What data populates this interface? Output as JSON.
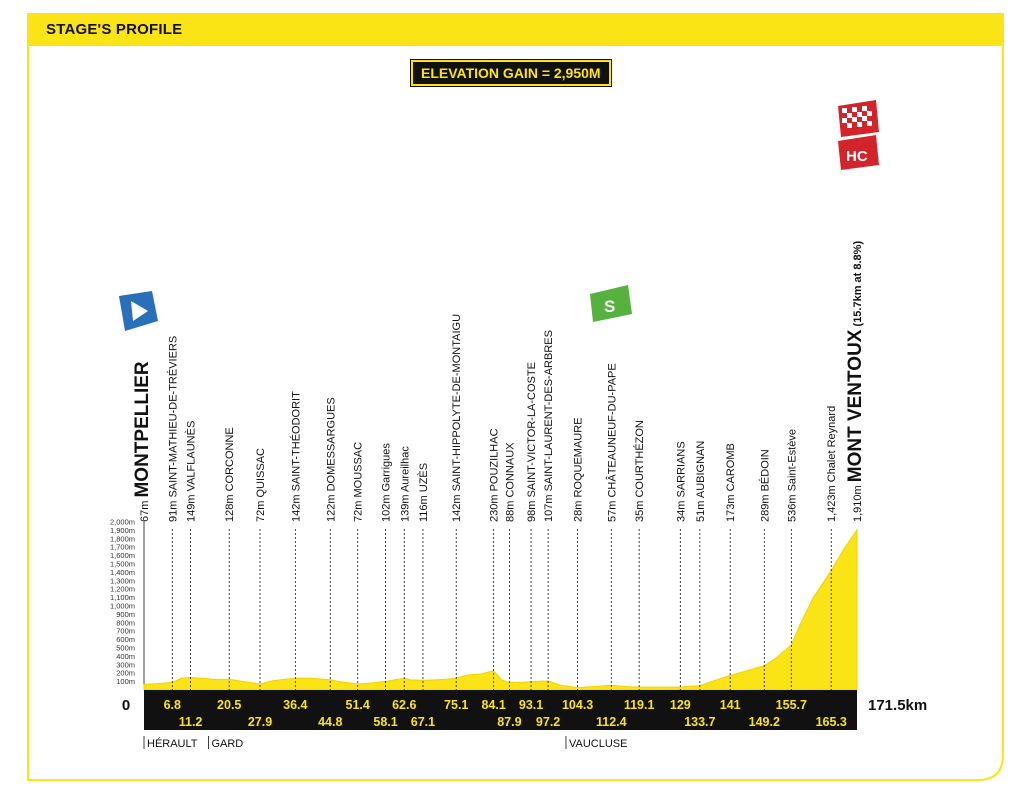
{
  "header": {
    "title": "STAGE'S PROFILE"
  },
  "elevation_gain": "ELEVATION GAIN = 2,950M",
  "badges": {
    "start": "▶",
    "sprint": "S",
    "category": "HC"
  },
  "colors": {
    "yellow": "#fbe416",
    "black": "#111111",
    "start_blue": "#2a6fba",
    "sprint_green": "#56b13f",
    "hc_red": "#d3232b"
  },
  "chart_data": {
    "type": "area",
    "title": "STAGE'S PROFILE",
    "xlim": [
      0,
      171.5
    ],
    "ylim": [
      0,
      2000
    ],
    "y_ticks": [
      "100m",
      "200m",
      "300m",
      "400m",
      "500m",
      "600m",
      "700m",
      "800m",
      "900m",
      "1,000m",
      "1,100m",
      "1,200m",
      "1,300m",
      "1,400m",
      "1,500m",
      "1,600m",
      "1,700m",
      "1,800m",
      "1,900m",
      "2,000m"
    ],
    "start_label": "0",
    "end_label": "171.5km",
    "profile": [
      [
        0,
        67
      ],
      [
        3,
        75
      ],
      [
        6.8,
        91
      ],
      [
        9,
        140
      ],
      [
        11.2,
        149
      ],
      [
        14,
        140
      ],
      [
        17,
        125
      ],
      [
        20.5,
        128
      ],
      [
        24,
        100
      ],
      [
        27.9,
        72
      ],
      [
        31,
        110
      ],
      [
        36.4,
        142
      ],
      [
        40,
        140
      ],
      [
        44.8,
        122
      ],
      [
        47,
        100
      ],
      [
        51.4,
        72
      ],
      [
        55,
        85
      ],
      [
        58.1,
        102
      ],
      [
        62.6,
        139
      ],
      [
        64,
        120
      ],
      [
        67.1,
        116
      ],
      [
        70,
        120
      ],
      [
        73,
        130
      ],
      [
        75.1,
        142
      ],
      [
        78,
        180
      ],
      [
        81,
        190
      ],
      [
        84.1,
        230
      ],
      [
        86,
        120
      ],
      [
        87.9,
        88
      ],
      [
        90,
        90
      ],
      [
        93.1,
        98
      ],
      [
        95,
        105
      ],
      [
        97.2,
        107
      ],
      [
        100,
        60
      ],
      [
        104.3,
        28
      ],
      [
        108,
        40
      ],
      [
        112.4,
        57
      ],
      [
        116,
        40
      ],
      [
        119.1,
        35
      ],
      [
        124,
        34
      ],
      [
        129,
        34
      ],
      [
        131,
        45
      ],
      [
        133.7,
        51
      ],
      [
        137,
        110
      ],
      [
        141,
        173
      ],
      [
        145,
        230
      ],
      [
        149.2,
        289
      ],
      [
        152,
        380
      ],
      [
        155.7,
        536
      ],
      [
        158,
        800
      ],
      [
        161,
        1100
      ],
      [
        165.3,
        1423
      ],
      [
        168,
        1650
      ],
      [
        171.5,
        1910
      ]
    ],
    "waypoints": [
      {
        "km": 0,
        "alt": "67m",
        "name": "MONTPELLIER",
        "style": "big"
      },
      {
        "km": 6.8,
        "alt": "91m",
        "name": "SAINT-MATHIEU-DE-TRÉVIERS"
      },
      {
        "km": 11.2,
        "alt": "149m",
        "name": "VALFLAUNÈS"
      },
      {
        "km": 20.5,
        "alt": "128m",
        "name": "CORCONNE"
      },
      {
        "km": 27.9,
        "alt": "72m",
        "name": "QUISSAC"
      },
      {
        "km": 36.4,
        "alt": "142m",
        "name": "SAINT-THÉODORIT"
      },
      {
        "km": 44.8,
        "alt": "122m",
        "name": "DOMESSARGUES"
      },
      {
        "km": 51.4,
        "alt": "72m",
        "name": "MOUSSAC"
      },
      {
        "km": 58.1,
        "alt": "102m",
        "name": "Garrigues"
      },
      {
        "km": 62.6,
        "alt": "139m",
        "name": "Aureilhac"
      },
      {
        "km": 67.1,
        "alt": "116m",
        "name": "UZÈS"
      },
      {
        "km": 75.1,
        "alt": "142m",
        "name": "SAINT-HIPPOLYTE-DE-MONTAIGU"
      },
      {
        "km": 84.1,
        "alt": "230m",
        "name": "POUZILHAC"
      },
      {
        "km": 87.9,
        "alt": "88m",
        "name": "CONNAUX"
      },
      {
        "km": 93.1,
        "alt": "98m",
        "name": "SAINT-VICTOR-LA-COSTE"
      },
      {
        "km": 97.2,
        "alt": "107m",
        "name": "SAINT-LAURENT-DES-ARBRES"
      },
      {
        "km": 104.3,
        "alt": "28m",
        "name": "ROQUEMAURE"
      },
      {
        "km": 112.4,
        "alt": "57m",
        "name": "CHÂTEAUNEUF-DU-PAPE"
      },
      {
        "km": 119.1,
        "alt": "35m",
        "name": "COURTHÉZON"
      },
      {
        "km": 129,
        "alt": "34m",
        "name": "SARRIANS"
      },
      {
        "km": 133.7,
        "alt": "51m",
        "name": "AUBIGNAN"
      },
      {
        "km": 141,
        "alt": "173m",
        "name": "CAROMB"
      },
      {
        "km": 149.2,
        "alt": "289m",
        "name": "BÉDOIN"
      },
      {
        "km": 155.7,
        "alt": "536m",
        "name": "Saint-Estève"
      },
      {
        "km": 165.3,
        "alt": "1,423m",
        "name": "Chalet Reynard"
      },
      {
        "km": 171.5,
        "alt": "1,910m",
        "name": "MONT VENTOUX",
        "style": "big",
        "suffix": "(15.7km at 8.8%)"
      }
    ],
    "km_top": [
      {
        "km": 6.8,
        "label": "6.8"
      },
      {
        "km": 20.5,
        "label": "20.5"
      },
      {
        "km": 36.4,
        "label": "36.4"
      },
      {
        "km": 51.4,
        "label": "51.4"
      },
      {
        "km": 62.6,
        "label": "62.6"
      },
      {
        "km": 75.1,
        "label": "75.1"
      },
      {
        "km": 84.1,
        "label": "84.1"
      },
      {
        "km": 93.1,
        "label": "93.1"
      },
      {
        "km": 104.3,
        "label": "104.3"
      },
      {
        "km": 119.1,
        "label": "119.1"
      },
      {
        "km": 129,
        "label": "129"
      },
      {
        "km": 141,
        "label": "141"
      },
      {
        "km": 155.7,
        "label": "155.7"
      }
    ],
    "km_bottom": [
      {
        "km": 11.2,
        "label": "11.2"
      },
      {
        "km": 27.9,
        "label": "27.9"
      },
      {
        "km": 44.8,
        "label": "44.8"
      },
      {
        "km": 58.1,
        "label": "58.1"
      },
      {
        "km": 67.1,
        "label": "67.1"
      },
      {
        "km": 87.9,
        "label": "87.9"
      },
      {
        "km": 97.2,
        "label": "97.2"
      },
      {
        "km": 112.4,
        "label": "112.4"
      },
      {
        "km": 133.7,
        "label": "133.7"
      },
      {
        "km": 149.2,
        "label": "149.2"
      },
      {
        "km": 165.3,
        "label": "165.3"
      }
    ],
    "regions": [
      {
        "km": 0,
        "label": "HÉRAULT"
      },
      {
        "km": 15.5,
        "label": "GARD"
      },
      {
        "km": 101.5,
        "label": "VAUCLUSE"
      }
    ]
  }
}
